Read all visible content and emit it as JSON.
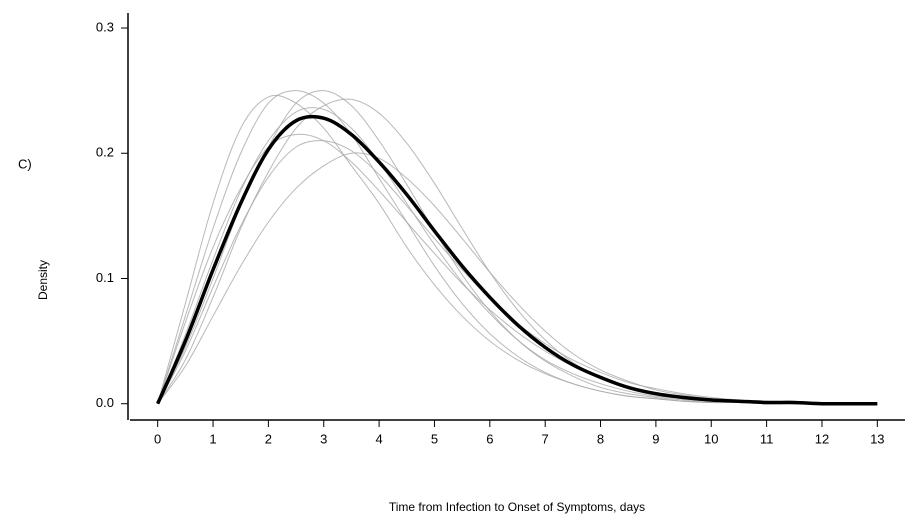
{
  "chart_data": {
    "type": "line",
    "panel_label": "C)",
    "xlabel": "Time from Infection to Onset of Symptoms, days",
    "ylabel": "Density",
    "x": [
      0,
      0.5,
      1,
      1.5,
      2,
      2.5,
      3,
      3.5,
      4,
      4.5,
      5,
      5.5,
      6,
      6.5,
      7,
      7.5,
      8,
      8.5,
      9,
      9.5,
      10,
      10.5,
      11,
      11.5,
      12,
      12.5,
      13
    ],
    "xlim": [
      -0.5,
      13.5
    ],
    "xticks": [
      0,
      1,
      2,
      3,
      4,
      5,
      6,
      7,
      8,
      9,
      10,
      11,
      12,
      13
    ],
    "ylim": [
      -0.013,
      0.312
    ],
    "yticks": [
      {
        "value": 0,
        "label": "0.0"
      },
      0.1,
      0.2,
      0.3
    ],
    "series": [
      {
        "color": "#a6a6a6",
        "values": [
          0,
          0.08,
          0.16,
          0.22,
          0.245,
          0.24,
          0.22,
          0.19,
          0.16,
          0.125,
          0.095,
          0.07,
          0.05,
          0.035,
          0.024,
          0.016,
          0.01,
          0.006,
          0.004,
          0.002,
          0.001,
          0.001,
          0,
          0,
          0,
          0,
          0
        ]
      },
      {
        "color": "#a6a6a6",
        "values": [
          0,
          0.03,
          0.07,
          0.11,
          0.145,
          0.172,
          0.19,
          0.2,
          0.196,
          0.18,
          0.158,
          0.132,
          0.105,
          0.08,
          0.058,
          0.04,
          0.027,
          0.018,
          0.011,
          0.007,
          0.004,
          0.002,
          0.001,
          0.001,
          0,
          0,
          0
        ]
      },
      {
        "color": "#a6a6a6",
        "values": [
          0,
          0.045,
          0.1,
          0.158,
          0.205,
          0.24,
          0.25,
          0.238,
          0.21,
          0.175,
          0.138,
          0.103,
          0.074,
          0.051,
          0.034,
          0.022,
          0.013,
          0.008,
          0.005,
          0.003,
          0.001,
          0.001,
          0,
          0,
          0,
          0,
          0
        ]
      },
      {
        "color": "#a6a6a6",
        "values": [
          0,
          0.065,
          0.125,
          0.172,
          0.205,
          0.215,
          0.21,
          0.193,
          0.17,
          0.145,
          0.12,
          0.096,
          0.075,
          0.057,
          0.042,
          0.03,
          0.021,
          0.014,
          0.009,
          0.006,
          0.004,
          0.002,
          0.001,
          0.001,
          0,
          0,
          0
        ]
      },
      {
        "color": "#a6a6a6",
        "values": [
          0,
          0.035,
          0.085,
          0.14,
          0.185,
          0.22,
          0.238,
          0.243,
          0.232,
          0.208,
          0.176,
          0.14,
          0.105,
          0.075,
          0.051,
          0.033,
          0.021,
          0.013,
          0.007,
          0.004,
          0.002,
          0.001,
          0.001,
          0,
          0,
          0,
          0
        ]
      },
      {
        "color": "#a6a6a6",
        "values": [
          0,
          0.055,
          0.115,
          0.17,
          0.21,
          0.233,
          0.235,
          0.22,
          0.193,
          0.16,
          0.127,
          0.097,
          0.072,
          0.051,
          0.035,
          0.024,
          0.016,
          0.01,
          0.006,
          0.004,
          0.002,
          0.001,
          0.001,
          0,
          0,
          0,
          0
        ]
      },
      {
        "color": "#a6a6a6",
        "values": [
          0,
          0.042,
          0.093,
          0.142,
          0.181,
          0.205,
          0.21,
          0.202,
          0.183,
          0.158,
          0.132,
          0.107,
          0.084,
          0.064,
          0.048,
          0.035,
          0.025,
          0.017,
          0.012,
          0.008,
          0.005,
          0.003,
          0.002,
          0.001,
          0.001,
          0,
          0
        ]
      },
      {
        "color": "#a6a6a6",
        "values": [
          0,
          0.07,
          0.14,
          0.2,
          0.24,
          0.25,
          0.24,
          0.215,
          0.18,
          0.145,
          0.11,
          0.08,
          0.056,
          0.038,
          0.025,
          0.016,
          0.01,
          0.006,
          0.004,
          0.002,
          0.001,
          0.001,
          0,
          0,
          0,
          0,
          0
        ]
      },
      {
        "color": "#000000",
        "width": 3.5,
        "values": [
          0,
          0.05,
          0.107,
          0.16,
          0.203,
          0.226,
          0.228,
          0.215,
          0.193,
          0.167,
          0.138,
          0.11,
          0.085,
          0.063,
          0.045,
          0.031,
          0.021,
          0.013,
          0.008,
          0.005,
          0.003,
          0.002,
          0.001,
          0.001,
          0,
          0,
          0
        ]
      }
    ]
  }
}
